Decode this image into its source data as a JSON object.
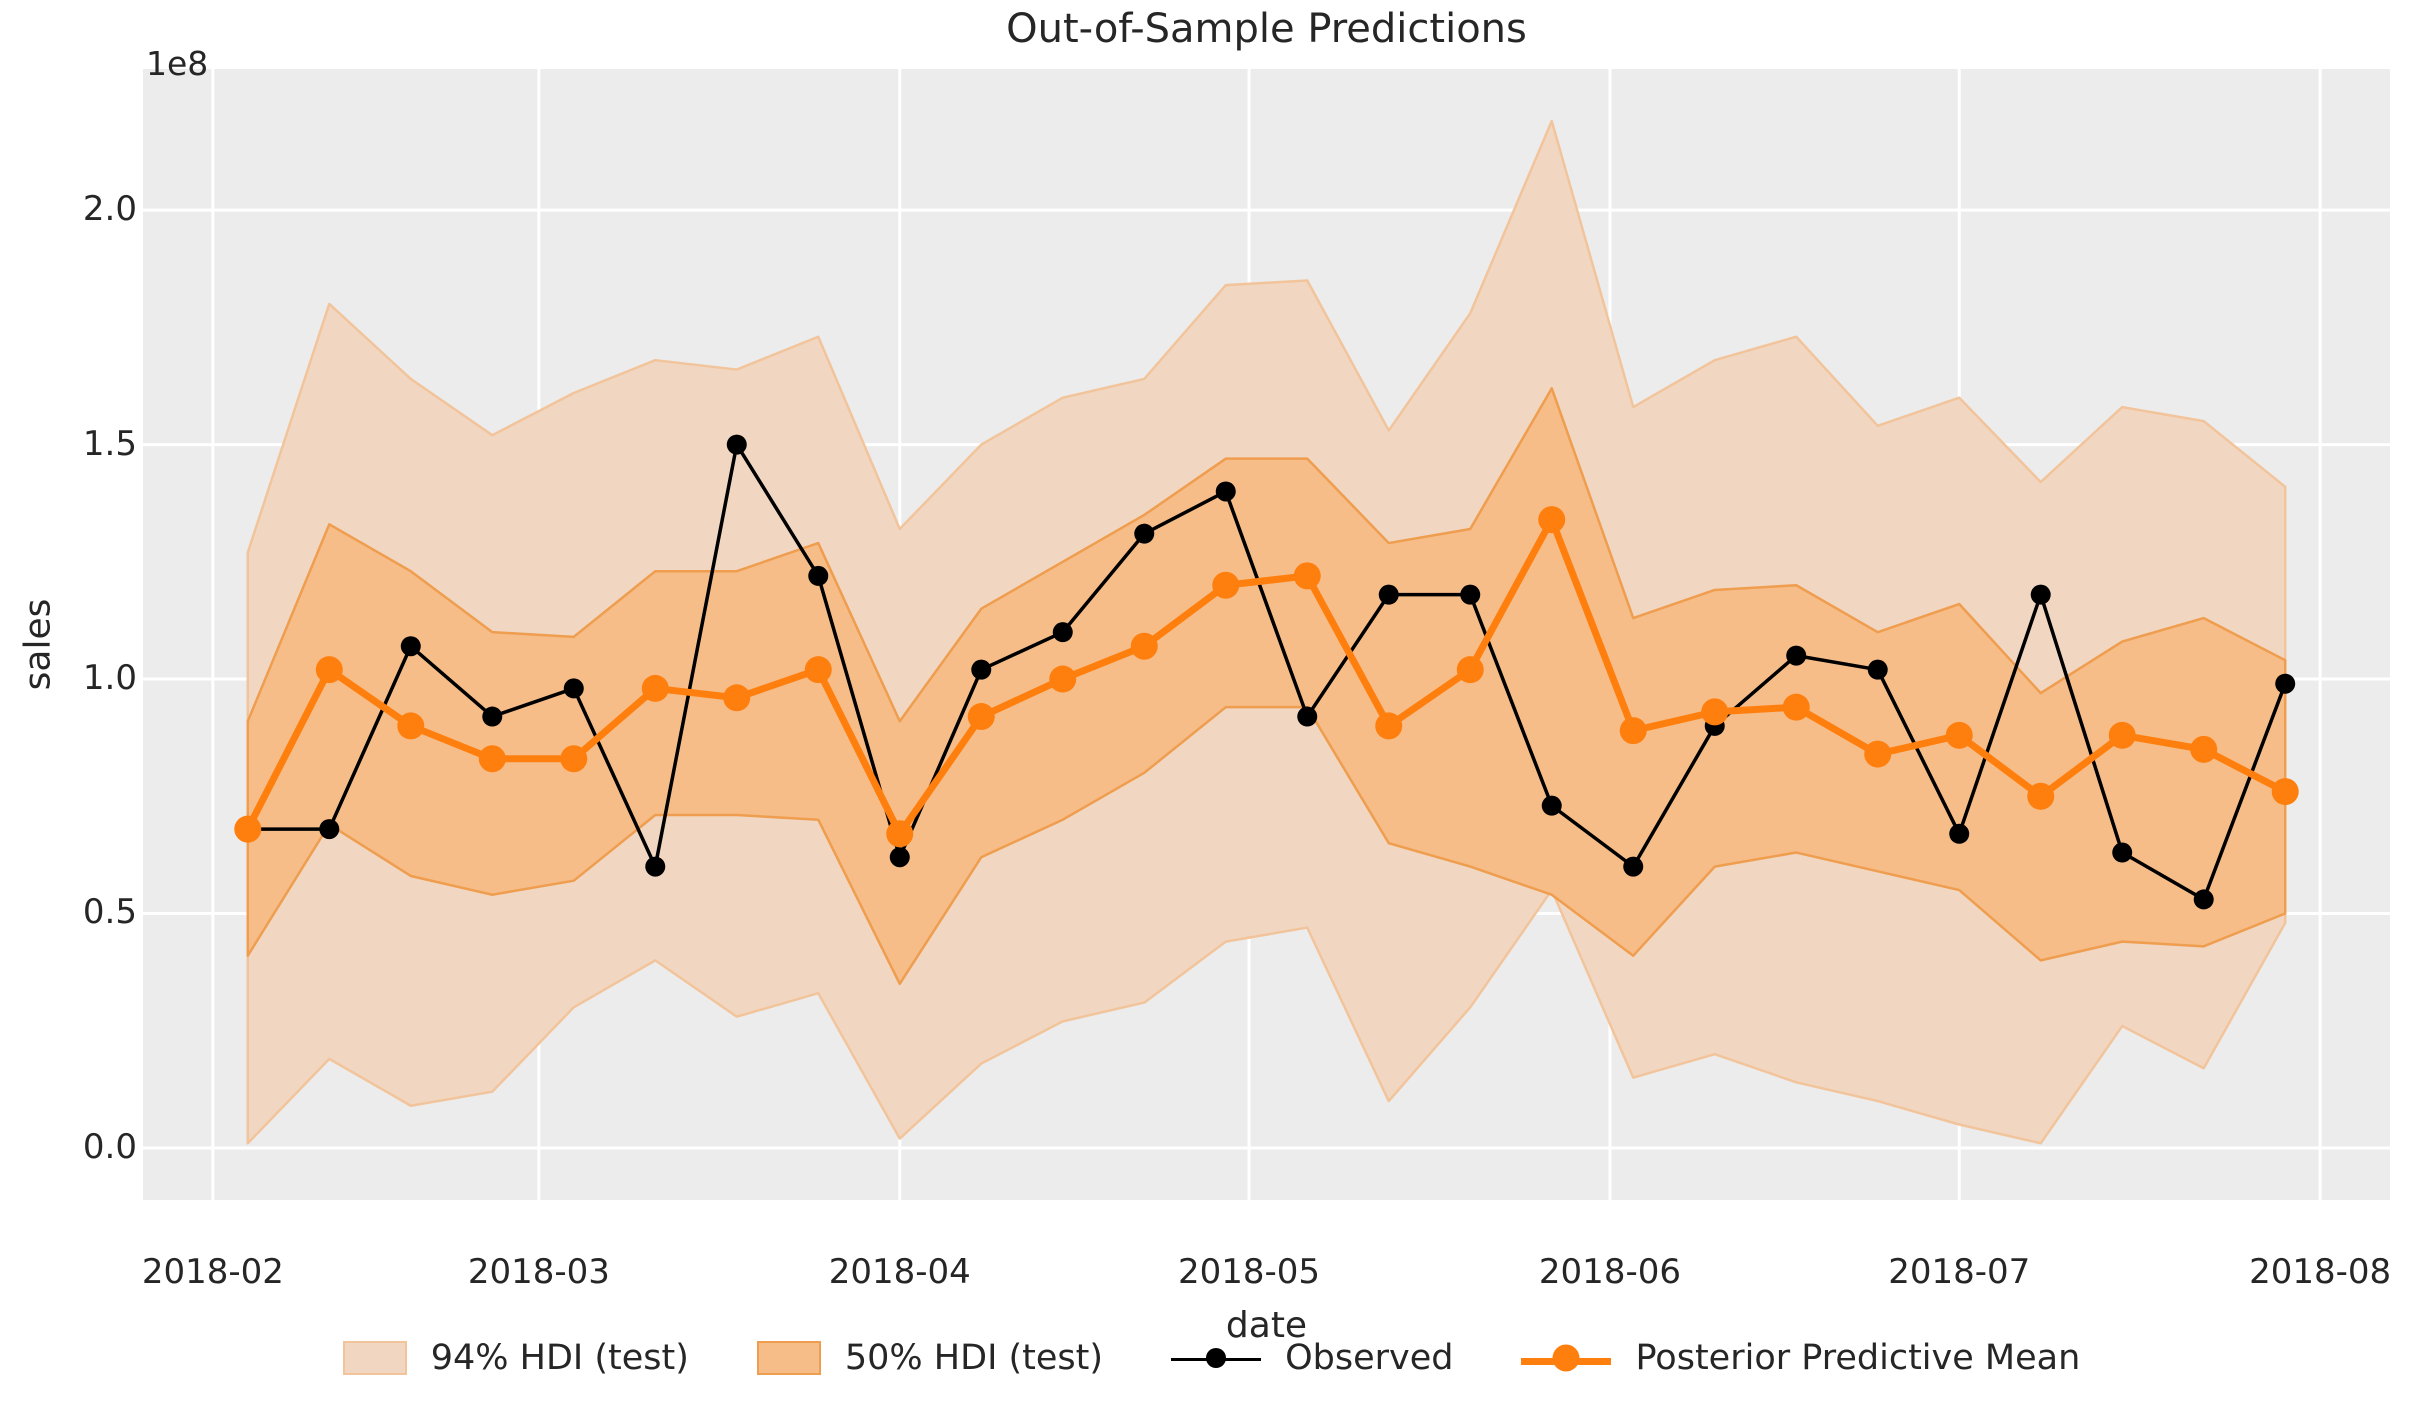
{
  "chart_data": {
    "type": "line",
    "title": "Out-of-Sample Predictions",
    "xlabel": "date",
    "ylabel": "sales",
    "y_offset_label": "1e8",
    "y_unit": "1e8",
    "x_start_ref": "2018-02-01",
    "xlim": [
      "2018-01-26",
      "2018-08-07"
    ],
    "ylim": [
      -0.111,
      2.301
    ],
    "grid": true,
    "legend_position": "below",
    "x": [
      "2018-02-04",
      "2018-02-11",
      "2018-02-18",
      "2018-02-25",
      "2018-03-04",
      "2018-03-11",
      "2018-03-18",
      "2018-03-25",
      "2018-04-01",
      "2018-04-08",
      "2018-04-15",
      "2018-04-22",
      "2018-04-29",
      "2018-05-06",
      "2018-05-13",
      "2018-05-20",
      "2018-05-27",
      "2018-06-03",
      "2018-06-10",
      "2018-06-17",
      "2018-06-24",
      "2018-07-01",
      "2018-07-08",
      "2018-07-15",
      "2018-07-22",
      "2018-07-29"
    ],
    "series": [
      {
        "name": "Observed",
        "values": [
          0.68,
          0.68,
          1.07,
          0.92,
          0.98,
          0.6,
          1.5,
          1.22,
          0.62,
          1.02,
          1.1,
          1.31,
          1.4,
          0.92,
          1.18,
          1.18,
          0.73,
          0.6,
          0.9,
          1.05,
          1.02,
          0.67,
          1.18,
          0.63,
          0.53,
          0.99
        ]
      },
      {
        "name": "Posterior Predictive Mean",
        "values": [
          0.68,
          1.02,
          0.9,
          0.83,
          0.83,
          0.98,
          0.96,
          1.02,
          0.67,
          0.92,
          1.0,
          1.07,
          1.2,
          1.22,
          0.9,
          1.02,
          1.34,
          0.89,
          0.93,
          0.94,
          0.84,
          0.88,
          0.75,
          0.88,
          0.85,
          0.76
        ]
      }
    ],
    "bands": [
      {
        "name": "94% HDI (test)",
        "lower": [
          0.01,
          0.19,
          0.09,
          0.12,
          0.3,
          0.4,
          0.28,
          0.33,
          0.02,
          0.18,
          0.27,
          0.31,
          0.44,
          0.47,
          0.1,
          0.3,
          0.55,
          0.15,
          0.2,
          0.14,
          0.1,
          0.05,
          0.01,
          0.26,
          0.17,
          0.48
        ],
        "upper": [
          1.27,
          1.8,
          1.64,
          1.52,
          1.61,
          1.68,
          1.66,
          1.73,
          1.32,
          1.5,
          1.6,
          1.64,
          1.84,
          1.85,
          1.53,
          1.78,
          2.19,
          1.58,
          1.68,
          1.73,
          1.54,
          1.6,
          1.42,
          1.58,
          1.55,
          1.41
        ]
      },
      {
        "name": "50% HDI (test)",
        "lower": [
          0.41,
          0.69,
          0.58,
          0.54,
          0.57,
          0.71,
          0.71,
          0.7,
          0.35,
          0.62,
          0.7,
          0.8,
          0.94,
          0.94,
          0.65,
          0.6,
          0.54,
          0.41,
          0.6,
          0.63,
          0.59,
          0.55,
          0.4,
          0.44,
          0.43,
          0.5
        ],
        "upper": [
          0.91,
          1.33,
          1.23,
          1.1,
          1.09,
          1.23,
          1.23,
          1.29,
          0.91,
          1.15,
          1.25,
          1.35,
          1.47,
          1.47,
          1.29,
          1.32,
          1.62,
          1.13,
          1.19,
          1.2,
          1.1,
          1.16,
          0.97,
          1.08,
          1.13,
          1.04
        ]
      }
    ],
    "x_ticks": [
      "2018-02",
      "2018-03",
      "2018-04",
      "2018-05",
      "2018-06",
      "2018-07",
      "2018-08"
    ],
    "y_ticks": [
      "0.0",
      "0.5",
      "1.0",
      "1.5",
      "2.0"
    ],
    "colors": {
      "plot_bg": "#ececec",
      "grid": "#ffffff",
      "observed": "#000000",
      "mean": "#ff7f0e",
      "hdi94_fill": "#f1d7c2",
      "hdi94_edge": "#f2c49b",
      "hdi50_fill": "#f6bd88",
      "hdi50_edge": "#ef9d4e",
      "text": "#262626"
    }
  }
}
